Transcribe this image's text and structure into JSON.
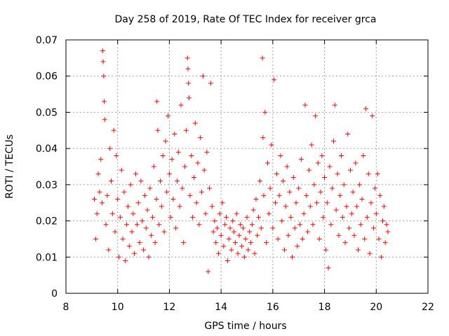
{
  "chart_data": {
    "type": "scatter",
    "title": "Day 258 of 2019, Rate Of TEC Index for receiver grca",
    "xlabel": "GPS time / hours",
    "ylabel": "ROTI / TECUs",
    "xlim": [
      8,
      22
    ],
    "ylim": [
      0,
      0.07
    ],
    "x_ticks": [
      "8",
      "10",
      "12",
      "14",
      "16",
      "18",
      "20",
      "22"
    ],
    "y_ticks": [
      "0",
      "0.01",
      "0.02",
      "0.03",
      "0.04",
      "0.05",
      "0.06",
      "0.07"
    ],
    "grid": true,
    "marker": "plus",
    "color": "#ff0000",
    "points": [
      [
        9.1,
        0.026
      ],
      [
        9.15,
        0.015
      ],
      [
        9.2,
        0.022
      ],
      [
        9.25,
        0.033
      ],
      [
        9.3,
        0.028
      ],
      [
        9.35,
        0.037
      ],
      [
        9.4,
        0.025
      ],
      [
        9.42,
        0.067
      ],
      [
        9.44,
        0.064
      ],
      [
        9.46,
        0.06
      ],
      [
        9.48,
        0.053
      ],
      [
        9.5,
        0.048
      ],
      [
        9.55,
        0.019
      ],
      [
        9.6,
        0.027
      ],
      [
        9.65,
        0.012
      ],
      [
        9.7,
        0.04
      ],
      [
        9.75,
        0.031
      ],
      [
        9.8,
        0.022
      ],
      [
        9.85,
        0.045
      ],
      [
        9.9,
        0.017
      ],
      [
        9.95,
        0.038
      ],
      [
        10.0,
        0.026
      ],
      [
        10.05,
        0.01
      ],
      [
        10.1,
        0.021
      ],
      [
        10.15,
        0.034
      ],
      [
        10.2,
        0.015
      ],
      [
        10.25,
        0.028
      ],
      [
        10.3,
        0.009
      ],
      [
        10.35,
        0.019
      ],
      [
        10.4,
        0.024
      ],
      [
        10.45,
        0.013
      ],
      [
        10.5,
        0.03
      ],
      [
        10.55,
        0.017
      ],
      [
        10.6,
        0.022
      ],
      [
        10.65,
        0.011
      ],
      [
        10.7,
        0.033
      ],
      [
        10.75,
        0.019
      ],
      [
        10.8,
        0.025
      ],
      [
        10.85,
        0.014
      ],
      [
        10.9,
        0.031
      ],
      [
        10.95,
        0.02
      ],
      [
        11.0,
        0.012
      ],
      [
        11.05,
        0.027
      ],
      [
        11.1,
        0.018
      ],
      [
        11.15,
        0.023
      ],
      [
        11.2,
        0.01
      ],
      [
        11.25,
        0.029
      ],
      [
        11.3,
        0.016
      ],
      [
        11.35,
        0.021
      ],
      [
        11.4,
        0.035
      ],
      [
        11.45,
        0.014
      ],
      [
        11.5,
        0.026
      ],
      [
        11.52,
        0.053
      ],
      [
        11.55,
        0.045
      ],
      [
        11.6,
        0.019
      ],
      [
        11.65,
        0.031
      ],
      [
        11.7,
        0.024
      ],
      [
        11.75,
        0.038
      ],
      [
        11.8,
        0.017
      ],
      [
        11.85,
        0.042
      ],
      [
        11.9,
        0.028
      ],
      [
        11.95,
        0.049
      ],
      [
        12.0,
        0.033
      ],
      [
        12.05,
        0.021
      ],
      [
        12.1,
        0.037
      ],
      [
        12.15,
        0.026
      ],
      [
        12.2,
        0.044
      ],
      [
        12.25,
        0.018
      ],
      [
        12.3,
        0.031
      ],
      [
        12.35,
        0.039
      ],
      [
        12.4,
        0.024
      ],
      [
        12.45,
        0.052
      ],
      [
        12.5,
        0.029
      ],
      [
        12.55,
        0.014
      ],
      [
        12.6,
        0.035
      ],
      [
        12.65,
        0.045
      ],
      [
        12.7,
        0.065
      ],
      [
        12.72,
        0.062
      ],
      [
        12.74,
        0.058
      ],
      [
        12.76,
        0.054
      ],
      [
        12.8,
        0.027
      ],
      [
        12.85,
        0.038
      ],
      [
        12.9,
        0.021
      ],
      [
        12.95,
        0.032
      ],
      [
        13.0,
        0.047
      ],
      [
        13.05,
        0.025
      ],
      [
        13.1,
        0.036
      ],
      [
        13.15,
        0.019
      ],
      [
        13.2,
        0.043
      ],
      [
        13.25,
        0.028
      ],
      [
        13.3,
        0.06
      ],
      [
        13.35,
        0.034
      ],
      [
        13.4,
        0.022
      ],
      [
        13.45,
        0.039
      ],
      [
        13.5,
        0.006
      ],
      [
        13.55,
        0.029
      ],
      [
        13.6,
        0.058
      ],
      [
        13.65,
        0.024
      ],
      [
        13.7,
        0.017
      ],
      [
        13.75,
        0.02
      ],
      [
        13.8,
        0.014
      ],
      [
        13.85,
        0.018
      ],
      [
        13.9,
        0.011
      ],
      [
        13.95,
        0.022
      ],
      [
        14.0,
        0.016
      ],
      [
        14.05,
        0.025
      ],
      [
        14.1,
        0.013
      ],
      [
        14.15,
        0.019
      ],
      [
        14.2,
        0.021
      ],
      [
        14.25,
        0.009
      ],
      [
        14.3,
        0.015
      ],
      [
        14.35,
        0.018
      ],
      [
        14.4,
        0.012
      ],
      [
        14.45,
        0.02
      ],
      [
        14.5,
        0.017
      ],
      [
        14.55,
        0.014
      ],
      [
        14.6,
        0.022
      ],
      [
        14.65,
        0.011
      ],
      [
        14.7,
        0.016
      ],
      [
        14.75,
        0.019
      ],
      [
        14.8,
        0.013
      ],
      [
        14.85,
        0.018
      ],
      [
        14.9,
        0.01
      ],
      [
        14.95,
        0.015
      ],
      [
        15.0,
        0.021
      ],
      [
        15.05,
        0.012
      ],
      [
        15.1,
        0.017
      ],
      [
        15.15,
        0.014
      ],
      [
        15.2,
        0.019
      ],
      [
        15.25,
        0.023
      ],
      [
        15.3,
        0.011
      ],
      [
        15.35,
        0.026
      ],
      [
        15.4,
        0.016
      ],
      [
        15.45,
        0.021
      ],
      [
        15.5,
        0.031
      ],
      [
        15.55,
        0.018
      ],
      [
        15.6,
        0.065
      ],
      [
        15.62,
        0.043
      ],
      [
        15.65,
        0.027
      ],
      [
        15.7,
        0.05
      ],
      [
        15.75,
        0.014
      ],
      [
        15.8,
        0.036
      ],
      [
        15.85,
        0.022
      ],
      [
        15.9,
        0.029
      ],
      [
        15.95,
        0.041
      ],
      [
        16.0,
        0.018
      ],
      [
        16.05,
        0.059
      ],
      [
        16.1,
        0.025
      ],
      [
        16.15,
        0.033
      ],
      [
        16.2,
        0.015
      ],
      [
        16.25,
        0.027
      ],
      [
        16.3,
        0.038
      ],
      [
        16.35,
        0.02
      ],
      [
        16.4,
        0.031
      ],
      [
        16.45,
        0.012
      ],
      [
        16.5,
        0.024
      ],
      [
        16.55,
        0.035
      ],
      [
        16.6,
        0.016
      ],
      [
        16.65,
        0.028
      ],
      [
        16.7,
        0.021
      ],
      [
        16.75,
        0.01
      ],
      [
        16.8,
        0.032
      ],
      [
        16.85,
        0.018
      ],
      [
        16.9,
        0.025
      ],
      [
        16.95,
        0.013
      ],
      [
        17.0,
        0.029
      ],
      [
        17.05,
        0.019
      ],
      [
        17.1,
        0.037
      ],
      [
        17.15,
        0.015
      ],
      [
        17.2,
        0.022
      ],
      [
        17.25,
        0.052
      ],
      [
        17.3,
        0.027
      ],
      [
        17.35,
        0.017
      ],
      [
        17.4,
        0.034
      ],
      [
        17.45,
        0.024
      ],
      [
        17.5,
        0.041
      ],
      [
        17.55,
        0.019
      ],
      [
        17.6,
        0.03
      ],
      [
        17.65,
        0.049
      ],
      [
        17.7,
        0.025
      ],
      [
        17.75,
        0.036
      ],
      [
        17.8,
        0.015
      ],
      [
        17.85,
        0.028
      ],
      [
        17.9,
        0.038
      ],
      [
        17.95,
        0.021
      ],
      [
        18.0,
        0.032
      ],
      [
        18.05,
        0.012
      ],
      [
        18.1,
        0.025
      ],
      [
        18.15,
        0.007
      ],
      [
        18.2,
        0.035
      ],
      [
        18.25,
        0.019
      ],
      [
        18.3,
        0.029
      ],
      [
        18.35,
        0.042
      ],
      [
        18.4,
        0.052
      ],
      [
        18.45,
        0.023
      ],
      [
        18.5,
        0.033
      ],
      [
        18.55,
        0.016
      ],
      [
        18.6,
        0.027
      ],
      [
        18.65,
        0.038
      ],
      [
        18.7,
        0.021
      ],
      [
        18.75,
        0.03
      ],
      [
        18.8,
        0.014
      ],
      [
        18.85,
        0.024
      ],
      [
        18.9,
        0.044
      ],
      [
        18.95,
        0.018
      ],
      [
        19.0,
        0.034
      ],
      [
        19.05,
        0.022
      ],
      [
        19.1,
        0.028
      ],
      [
        19.15,
        0.016
      ],
      [
        19.2,
        0.036
      ],
      [
        19.25,
        0.024
      ],
      [
        19.3,
        0.012
      ],
      [
        19.35,
        0.03
      ],
      [
        19.4,
        0.019
      ],
      [
        19.45,
        0.026
      ],
      [
        19.5,
        0.038
      ],
      [
        19.55,
        0.015
      ],
      [
        19.6,
        0.051
      ],
      [
        19.65,
        0.021
      ],
      [
        19.7,
        0.033
      ],
      [
        19.75,
        0.011
      ],
      [
        19.8,
        0.025
      ],
      [
        19.85,
        0.049
      ],
      [
        19.9,
        0.018
      ],
      [
        19.95,
        0.029
      ],
      [
        20.0,
        0.022
      ],
      [
        20.05,
        0.033
      ],
      [
        20.1,
        0.015
      ],
      [
        20.15,
        0.027
      ],
      [
        20.2,
        0.01
      ],
      [
        20.25,
        0.02
      ],
      [
        20.3,
        0.024
      ],
      [
        20.35,
        0.014
      ],
      [
        20.4,
        0.019
      ],
      [
        20.45,
        0.017
      ]
    ]
  }
}
